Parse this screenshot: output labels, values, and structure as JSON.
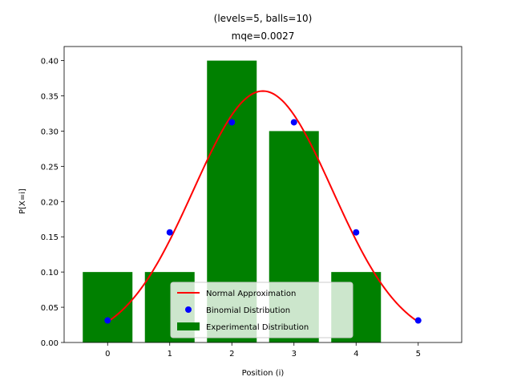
{
  "chart_data": {
    "type": "bar",
    "title": "(levels=5, balls=10)",
    "subtitle": "mqe=0.0027",
    "xlabel": "Position (i)",
    "ylabel": "P[X=i]",
    "xlim": [
      -0.7,
      5.7
    ],
    "ylim": [
      0,
      0.42
    ],
    "xticks": [
      0,
      1,
      2,
      3,
      4,
      5
    ],
    "yticks": [
      0.0,
      0.05,
      0.1,
      0.15,
      0.2,
      0.25,
      0.3,
      0.35,
      0.4
    ],
    "grid": false,
    "legend_position": "lower-center",
    "series": [
      {
        "name": "Experimental Distribution",
        "kind": "bar",
        "color": "#008000",
        "x": [
          0,
          1,
          2,
          3,
          4
        ],
        "values": [
          0.1,
          0.1,
          0.4,
          0.3,
          0.1
        ]
      },
      {
        "name": "Binomial Distribution",
        "kind": "scatter",
        "color": "#0000ff",
        "x": [
          0,
          1,
          2,
          3,
          4,
          5
        ],
        "values": [
          0.03125,
          0.15625,
          0.3125,
          0.3125,
          0.15625,
          0.03125
        ]
      },
      {
        "name": "Normal Approximation",
        "kind": "line",
        "color": "#ff0000",
        "mean": 2.5,
        "std": 1.118,
        "x_range": [
          0,
          5
        ]
      }
    ],
    "legend": [
      "Normal Approximation",
      "Binomial Distribution",
      "Experimental Distribution"
    ]
  }
}
